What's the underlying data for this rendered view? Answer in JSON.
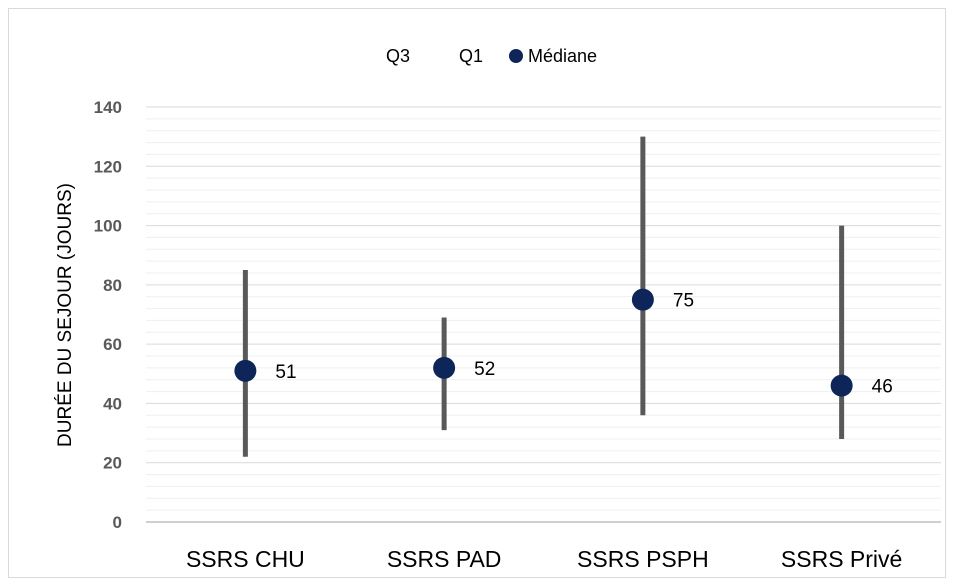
{
  "chart_data": {
    "type": "scatter",
    "title": "",
    "xlabel": "",
    "ylabel": "DURÉE DU SEJOUR (JOURS)",
    "ylim": [
      0,
      140
    ],
    "yticks": [
      0,
      20,
      40,
      60,
      80,
      100,
      120,
      140
    ],
    "grid": true,
    "legend_position": "top",
    "legend": [
      "Q3",
      "Q1",
      "Médiane"
    ],
    "categories": [
      "SSRS CHU",
      "SSRS PAD",
      "SSRS PSPH",
      "SSRS Privé"
    ],
    "series": [
      {
        "name": "Q3",
        "values": [
          85,
          69,
          130,
          100
        ]
      },
      {
        "name": "Q1",
        "values": [
          22,
          31,
          36,
          28
        ]
      },
      {
        "name": "Médiane",
        "values": [
          51,
          52,
          75,
          46
        ]
      }
    ],
    "colors": {
      "range_line": "#595959",
      "median_marker": "#0d2559",
      "grid": "#d9d9d9"
    }
  }
}
